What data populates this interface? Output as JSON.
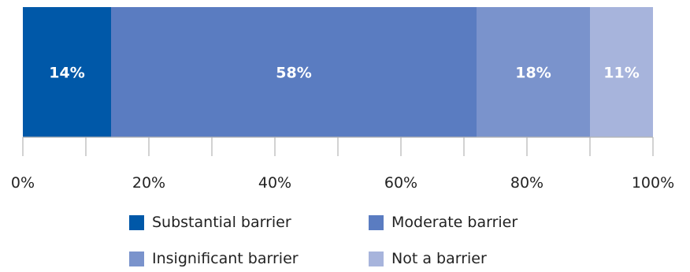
{
  "chart_data": {
    "type": "bar",
    "orientation": "horizontal-stacked",
    "series": [
      {
        "name": "Substantial barrier",
        "value": 14,
        "label": "14%",
        "color": "#0058a8"
      },
      {
        "name": "Moderate barrier",
        "value": 58,
        "label": "58%",
        "color": "#5a7cc1"
      },
      {
        "name": "Insignificant barrier",
        "value": 18,
        "label": "18%",
        "color": "#7a93cc"
      },
      {
        "name": "Not a barrier",
        "value": 11,
        "label": "11%",
        "color": "#a7b4dc"
      }
    ],
    "x_ticks": [
      "0%",
      "20%",
      "40%",
      "60%",
      "80%",
      "100%"
    ],
    "x_tick_values": [
      0,
      20,
      40,
      60,
      80,
      100
    ],
    "xlim": [
      0,
      100
    ],
    "minor_tick_step": 10,
    "grid": false,
    "legend_placement": "bottom"
  }
}
